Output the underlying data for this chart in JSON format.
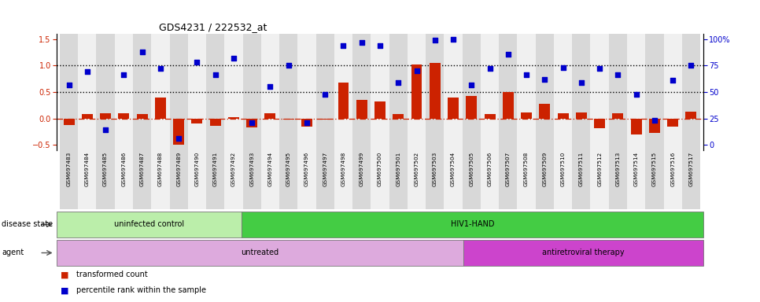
{
  "title": "GDS4231 / 222532_at",
  "samples": [
    "GSM697483",
    "GSM697484",
    "GSM697485",
    "GSM697486",
    "GSM697487",
    "GSM697488",
    "GSM697489",
    "GSM697490",
    "GSM697491",
    "GSM697492",
    "GSM697493",
    "GSM697494",
    "GSM697495",
    "GSM697496",
    "GSM697497",
    "GSM697498",
    "GSM697499",
    "GSM697500",
    "GSM697501",
    "GSM697502",
    "GSM697503",
    "GSM697504",
    "GSM697505",
    "GSM697506",
    "GSM697507",
    "GSM697508",
    "GSM697509",
    "GSM697510",
    "GSM697511",
    "GSM697512",
    "GSM697513",
    "GSM697514",
    "GSM697515",
    "GSM697516",
    "GSM697517"
  ],
  "transformed_count": [
    -0.13,
    0.08,
    0.1,
    0.1,
    0.08,
    0.4,
    -0.49,
    -0.1,
    -0.14,
    0.03,
    -0.17,
    0.1,
    -0.02,
    -0.15,
    -0.02,
    0.68,
    0.35,
    0.32,
    0.08,
    1.02,
    1.05,
    0.4,
    0.43,
    0.08,
    0.5,
    0.12,
    0.27,
    0.1,
    0.12,
    -0.18,
    0.1,
    -0.3,
    -0.28,
    -0.15,
    0.13
  ],
  "percentile_rank_pct": [
    57,
    69,
    14,
    66,
    88,
    72,
    6,
    78,
    66,
    82,
    21,
    55,
    75,
    21,
    48,
    94,
    97,
    94,
    59,
    70,
    99,
    100,
    57,
    72,
    86,
    66,
    62,
    73,
    59,
    72,
    66,
    48,
    23,
    61,
    75
  ],
  "bar_color": "#cc2200",
  "square_color": "#0000cc",
  "n_uninfected": 10,
  "n_untreated": 22,
  "disease_color_1": "#bbeeaa",
  "disease_color_2": "#44cc44",
  "agent_color_1": "#ddaadd",
  "agent_color_2": "#cc44cc",
  "col_bg_even": "#d8d8d8",
  "col_bg_odd": "#f0f0f0"
}
